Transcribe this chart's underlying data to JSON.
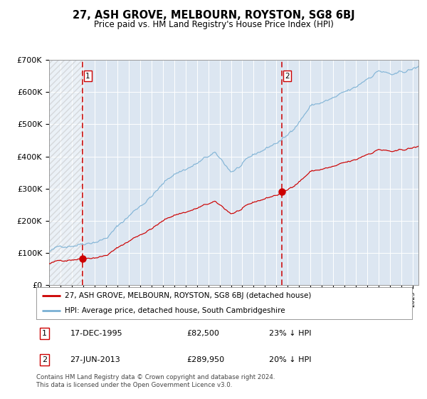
{
  "title": "27, ASH GROVE, MELBOURN, ROYSTON, SG8 6BJ",
  "subtitle": "Price paid vs. HM Land Registry's House Price Index (HPI)",
  "ylim": [
    0,
    700000
  ],
  "yticks": [
    0,
    100000,
    200000,
    300000,
    400000,
    500000,
    600000,
    700000
  ],
  "ytick_labels": [
    "£0",
    "£100K",
    "£200K",
    "£300K",
    "£400K",
    "£500K",
    "£600K",
    "£700K"
  ],
  "hpi_color": "#7ab0d4",
  "price_color": "#cc0000",
  "dot_color": "#cc0000",
  "vline_color": "#cc0000",
  "purchase1_year": 1995.96,
  "purchase1_price": 82500,
  "purchase1_label": "17-DEC-1995",
  "purchase1_pct": "23%",
  "purchase2_year": 2013.49,
  "purchase2_price": 289950,
  "purchase2_label": "27-JUN-2013",
  "purchase2_pct": "20%",
  "legend_line1": "27, ASH GROVE, MELBOURN, ROYSTON, SG8 6BJ (detached house)",
  "legend_line2": "HPI: Average price, detached house, South Cambridgeshire",
  "plot_bg_color": "#dce6f1",
  "grid_color": "#ffffff",
  "footnote": "Contains HM Land Registry data © Crown copyright and database right 2024.\nThis data is licensed under the Open Government Licence v3.0.",
  "xlim_start": 1993.0,
  "xlim_end": 2025.5
}
